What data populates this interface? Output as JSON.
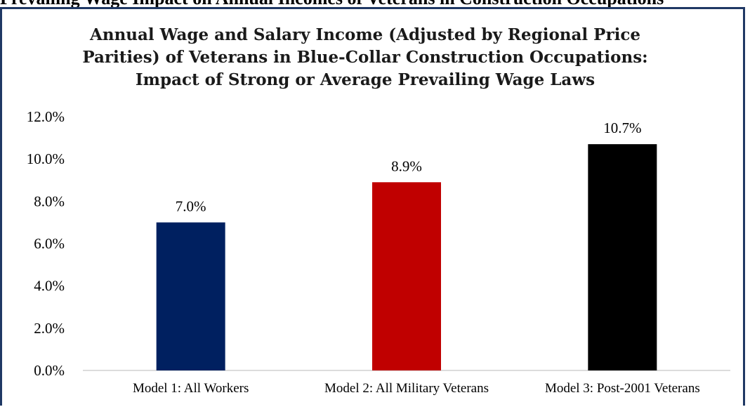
{
  "header": {
    "caption": "Prevailing Wage Impact on Annual Incomes of Veterans in Construction Occupations"
  },
  "chart_data": {
    "type": "bar",
    "title_lines": [
      "Annual Wage and Salary Income (Adjusted by Regional Price",
      "Parities) of Veterans in Blue-Collar Construction Occupations:",
      "Impact of Strong or Average Prevailing Wage Laws"
    ],
    "categories": [
      "Model 1: All Workers",
      "Model 2: All Military Veterans",
      "Model 3: Post-2001 Veterans"
    ],
    "values": [
      7.0,
      8.9,
      10.7
    ],
    "value_labels": [
      "7.0%",
      "8.9%",
      "10.7%"
    ],
    "colors": [
      "#002060",
      "#c00000",
      "#000000"
    ],
    "ylim": [
      0,
      12
    ],
    "yticks": [
      0,
      2,
      4,
      6,
      8,
      10,
      12
    ],
    "ytick_labels": [
      "0.0%",
      "2.0%",
      "4.0%",
      "6.0%",
      "8.0%",
      "10.0%",
      "12.0%"
    ],
    "xlabel": "",
    "ylabel": "",
    "grid": false,
    "legend": false
  }
}
